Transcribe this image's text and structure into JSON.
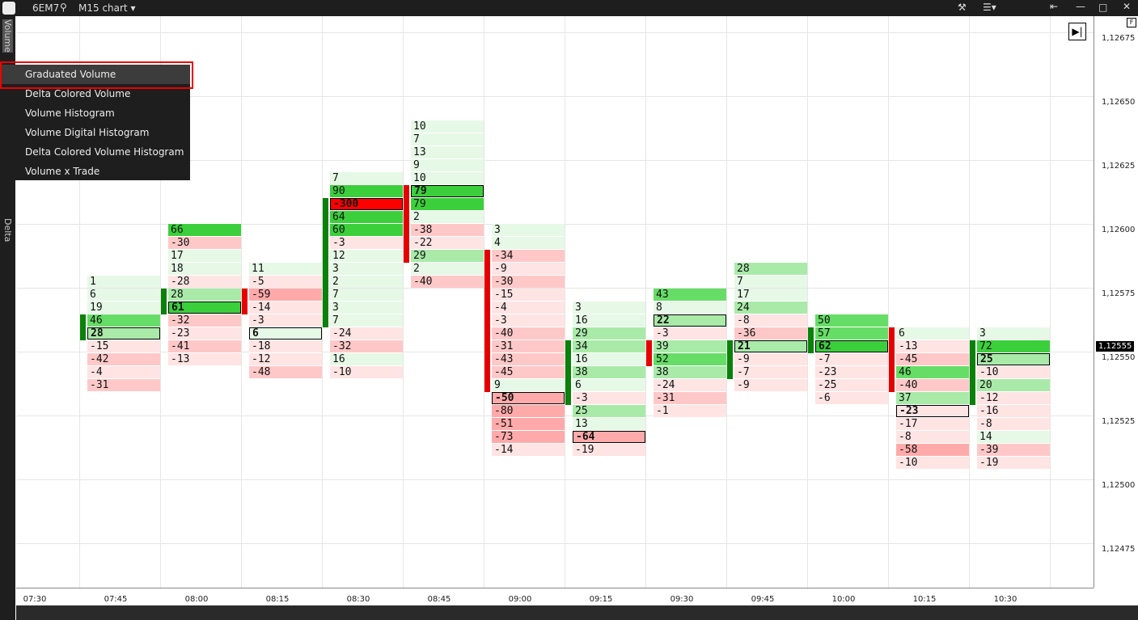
{
  "toolbar": {
    "symbol": "6EM7",
    "chart": "M15 chart"
  },
  "side_panel": {
    "volume": "Volume",
    "delta": "Delta"
  },
  "menu": {
    "items": [
      "Graduated Volume",
      "Delta Colored Volume",
      "Volume Histogram",
      "Volume Digital Histogram",
      "Delta Colored Volume Histogram",
      "Volume x Trade"
    ]
  },
  "price_axis": {
    "labels": [
      "1,12675",
      "1,12650",
      "1,12625",
      "1,12600",
      "1,12575",
      "1,12550",
      "1,12525",
      "1,12500",
      "1,12475"
    ],
    "current": "1,12555"
  },
  "time_axis": {
    "labels": [
      "07:30",
      "07:45",
      "08:00",
      "08:15",
      "08:30",
      "08:45",
      "09:00",
      "09:15",
      "09:30",
      "09:45",
      "10:00",
      "10:15",
      "10:30"
    ]
  },
  "columns": [
    [
      1,
      6,
      19,
      46,
      28,
      -15,
      -42,
      -4,
      -31
    ],
    [
      66,
      -30,
      17,
      18,
      -28,
      28,
      61,
      -32,
      -23,
      -41,
      -13
    ],
    [
      11,
      -5,
      -59,
      -14,
      -3,
      6,
      -18,
      -12,
      -48
    ],
    [
      7,
      90,
      -300,
      64,
      60,
      -3,
      12,
      3,
      2,
      7,
      3,
      7,
      -24,
      -32,
      16,
      -10
    ],
    [
      10,
      7,
      13,
      9,
      10,
      79,
      79,
      2,
      -38,
      -22,
      29,
      2,
      -40
    ],
    [
      3,
      4,
      -34,
      -9,
      -30,
      -15,
      -4,
      -3,
      -40,
      -31,
      -43,
      -45,
      9,
      -50,
      -80,
      -51,
      -73,
      -14
    ],
    [
      3,
      16,
      29,
      34,
      16,
      38,
      6,
      -3,
      25,
      13,
      -64,
      -19
    ],
    [
      43,
      8,
      22,
      -3,
      39,
      52,
      38,
      -24,
      -31,
      -1
    ],
    [
      28,
      7,
      17,
      24,
      -8,
      -36,
      21,
      -9,
      -7,
      -9
    ],
    [
      50,
      57,
      62,
      -7,
      -23,
      -25,
      -6
    ],
    [
      6,
      -13,
      -45,
      46,
      -40,
      37,
      -23,
      -17,
      -8,
      -58,
      -10
    ],
    [
      3,
      72,
      25,
      -10,
      20,
      -12,
      -16,
      -8,
      14,
      -39,
      -19
    ]
  ]
}
